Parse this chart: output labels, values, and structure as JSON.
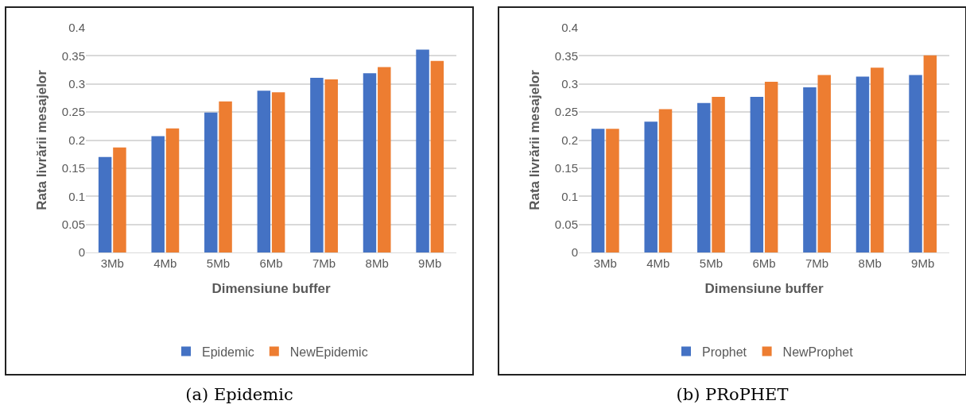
{
  "chart_data": [
    {
      "type": "bar",
      "xlabel": "Dimensiune buffer",
      "ylabel": "Rata livrării mesajelor",
      "categories": [
        "3Mb",
        "4Mb",
        "5Mb",
        "6Mb",
        "7Mb",
        "8Mb",
        "9Mb"
      ],
      "series": [
        {
          "name": "Epidemic",
          "color": "#4472c4",
          "values": [
            0.17,
            0.207,
            0.249,
            0.288,
            0.311,
            0.319,
            0.361
          ]
        },
        {
          "name": "NewEpidemic",
          "color": "#ed7d31",
          "values": [
            0.187,
            0.221,
            0.269,
            0.285,
            0.308,
            0.33,
            0.341
          ]
        }
      ],
      "ylim": [
        0,
        0.4
      ],
      "yticks": [
        0,
        0.05,
        0.1,
        0.15,
        0.2,
        0.25,
        0.3,
        0.35,
        0.4
      ],
      "grid": "y",
      "legend": "bottom",
      "annotations": [
        "(a) Epidemic"
      ]
    },
    {
      "type": "bar",
      "xlabel": "Dimensiune buffer",
      "ylabel": "Rata livrării mesajelor",
      "categories": [
        "3Mb",
        "4Mb",
        "5Mb",
        "6Mb",
        "7Mb",
        "8Mb",
        "9Mb"
      ],
      "series": [
        {
          "name": "Prophet",
          "color": "#4472c4",
          "values": [
            0.22,
            0.233,
            0.266,
            0.277,
            0.294,
            0.313,
            0.316
          ]
        },
        {
          "name": "NewProphet",
          "color": "#ed7d31",
          "values": [
            0.22,
            0.255,
            0.277,
            0.304,
            0.316,
            0.329,
            0.351
          ]
        }
      ],
      "ylim": [
        0,
        0.4
      ],
      "yticks": [
        0,
        0.05,
        0.1,
        0.15,
        0.2,
        0.25,
        0.3,
        0.35,
        0.4
      ],
      "grid": "y",
      "legend": "bottom",
      "annotations": [
        "(b) PRoPHET"
      ]
    }
  ]
}
